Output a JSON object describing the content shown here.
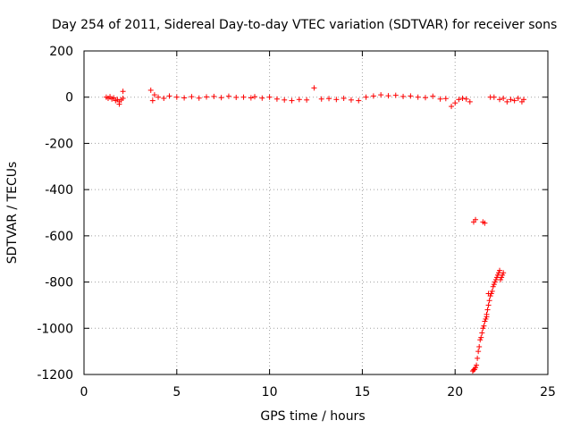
{
  "chart_data": {
    "type": "scatter",
    "title": "Day 254 of 2011, Sidereal Day-to-day VTEC variation (SDTVAR) for receiver sons",
    "xlabel": "GPS time / hours",
    "ylabel": "SDTVAR / TECUs",
    "xlim": [
      0,
      25
    ],
    "ylim": [
      -1200,
      200
    ],
    "xticks": [
      "0",
      "5",
      "10",
      "15",
      "20",
      "25"
    ],
    "yticks": [
      "200",
      "0",
      "-200",
      "-400",
      "-600",
      "-800",
      "-1000",
      "-1200"
    ],
    "grid": true,
    "marker": "+",
    "color": "#ff0000",
    "series": [
      {
        "x": [
          1.2,
          1.3,
          1.4,
          1.5,
          1.6,
          1.7,
          1.8,
          1.9,
          2.0,
          2.1,
          1.9,
          2.1,
          3.6,
          3.7,
          3.8,
          4.0,
          4.3,
          4.6,
          5.0,
          5.4,
          5.8,
          6.2,
          6.6,
          7.0,
          7.4,
          7.8,
          8.2,
          8.6,
          9.0,
          9.2,
          9.6,
          10.0,
          10.4,
          10.8,
          11.2,
          11.6,
          12.0,
          12.4,
          12.8,
          13.2,
          13.6,
          14.0,
          14.4,
          14.8,
          15.2,
          15.6,
          16.0,
          16.4,
          16.8,
          17.2,
          17.6,
          18.0,
          18.4,
          18.8,
          19.2,
          19.5,
          19.8,
          20.0,
          20.2,
          20.4,
          20.6,
          20.8,
          21.9,
          22.1,
          22.4,
          22.6,
          22.8,
          23.0,
          23.2,
          23.4,
          23.6,
          23.7
        ],
        "y": [
          0,
          -5,
          2,
          -8,
          -3,
          -15,
          -10,
          -20,
          -12,
          -5,
          -30,
          25,
          30,
          -15,
          10,
          0,
          -5,
          5,
          0,
          -3,
          2,
          -4,
          1,
          3,
          -2,
          4,
          -1,
          0,
          -3,
          2,
          -4,
          0,
          -8,
          -12,
          -15,
          -10,
          -12,
          40,
          -8,
          -6,
          -10,
          -5,
          -12,
          -15,
          0,
          5,
          10,
          6,
          8,
          3,
          5,
          0,
          -2,
          4,
          -8,
          -6,
          -40,
          -25,
          -10,
          -5,
          -8,
          -20,
          0,
          0,
          -10,
          -5,
          -20,
          -10,
          -15,
          -5,
          -20,
          -10
        ]
      },
      {
        "x": [
          20.95,
          21.0,
          21.05,
          21.1,
          21.15,
          21.2,
          21.25,
          21.3,
          21.35,
          21.4,
          21.45,
          21.5,
          21.55,
          21.6,
          21.65,
          21.7,
          21.75,
          21.8,
          21.85,
          21.9,
          21.95,
          22.0,
          22.05,
          22.1,
          22.15,
          22.2,
          22.25,
          22.3,
          22.35,
          22.4,
          22.45,
          22.5,
          22.55,
          22.6,
          21.0,
          21.1,
          21.5,
          21.6,
          21.7,
          21.8
        ],
        "y": [
          -1185,
          -1180,
          -1178,
          -1170,
          -1160,
          -1130,
          -1100,
          -1080,
          -1050,
          -1040,
          -1020,
          -1000,
          -990,
          -970,
          -960,
          -940,
          -920,
          -900,
          -880,
          -860,
          -850,
          -840,
          -820,
          -810,
          -800,
          -790,
          -780,
          -770,
          -760,
          -750,
          -790,
          -780,
          -770,
          -760,
          -540,
          -530,
          -540,
          -545,
          -950,
          -850
        ]
      }
    ]
  }
}
